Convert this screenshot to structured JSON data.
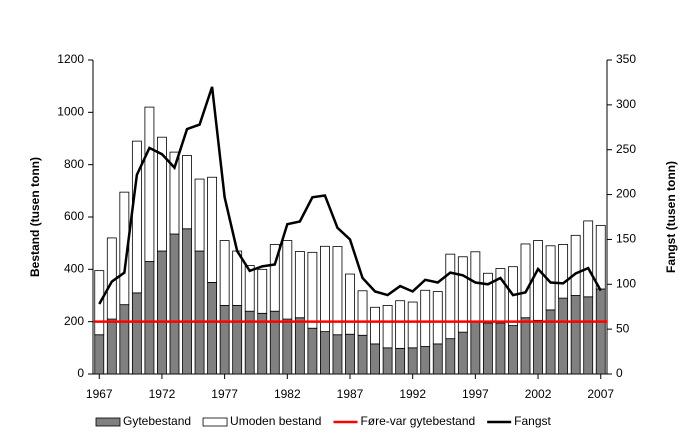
{
  "chart_data": {
    "type": "bar",
    "stacked": true,
    "categories": [
      "1967",
      null,
      null,
      null,
      null,
      "1972",
      null,
      null,
      null,
      null,
      "1977",
      null,
      null,
      null,
      null,
      "1982",
      null,
      null,
      null,
      null,
      "1987",
      null,
      null,
      null,
      null,
      "1992",
      null,
      null,
      null,
      null,
      "1997",
      null,
      null,
      null,
      null,
      "2002",
      null,
      null,
      null,
      null,
      "2007"
    ],
    "series": [
      {
        "name": "Gytebestand",
        "color": "#808080",
        "values": [
          150,
          210,
          265,
          310,
          430,
          470,
          535,
          555,
          470,
          350,
          262,
          262,
          240,
          232,
          240,
          210,
          215,
          175,
          162,
          150,
          152,
          148,
          115,
          100,
          98,
          100,
          105,
          115,
          135,
          160,
          200,
          195,
          195,
          185,
          215,
          205,
          245,
          290,
          300,
          295,
          325
        ]
      },
      {
        "name": "Umoden bestand",
        "color": "#ffffff",
        "values": [
          245,
          310,
          430,
          580,
          590,
          435,
          313,
          280,
          275,
          402,
          248,
          208,
          175,
          168,
          255,
          300,
          253,
          290,
          326,
          337,
          230,
          170,
          140,
          162,
          182,
          175,
          215,
          200,
          323,
          288,
          267,
          190,
          208,
          225,
          282,
          305,
          245,
          205,
          230,
          290,
          243
        ]
      },
      {
        "name": "Fangst",
        "color": "#000000",
        "type": "line",
        "axis": "y2",
        "values": [
          78,
          103,
          113,
          222,
          252,
          245,
          230,
          273,
          278,
          320,
          197,
          137,
          115,
          120,
          122,
          167,
          170,
          197,
          199,
          163,
          150,
          107,
          92,
          88,
          98,
          92,
          105,
          102,
          113,
          110,
          102,
          100,
          107,
          88,
          91,
          117,
          102,
          101,
          112,
          118,
          93
        ]
      }
    ],
    "reference_line": {
      "name": "Føre-var gytebestand",
      "value": 200,
      "color": "#ff0000"
    },
    "y_label": "Bestand (tusen tonn)",
    "y2_label": "Fangst (tusen tonn)",
    "ylim": [
      0,
      1200
    ],
    "yticks": [
      0,
      200,
      400,
      600,
      800,
      1000,
      1200
    ],
    "y2lim": [
      0,
      350
    ],
    "y2ticks": [
      0,
      50,
      100,
      150,
      200,
      250,
      300,
      350
    ],
    "legend": "bottom"
  }
}
